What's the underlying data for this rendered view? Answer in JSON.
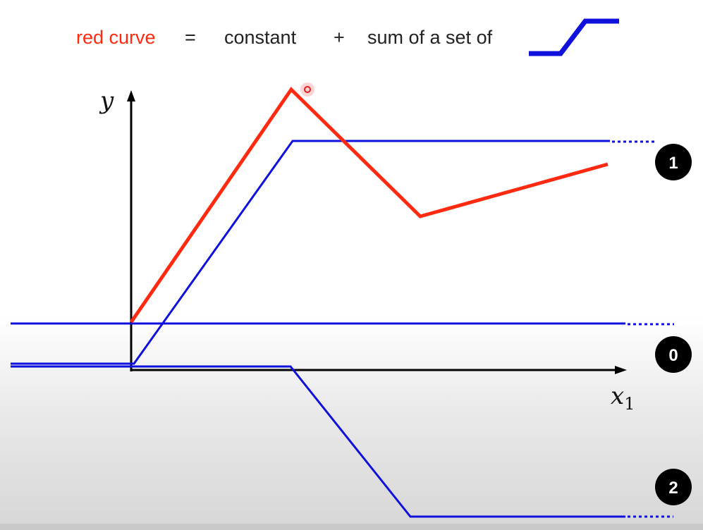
{
  "equation": {
    "term_red": "red curve",
    "equals": "=",
    "term_constant": "constant",
    "plus": "+",
    "term_sum": "sum of a set of",
    "icon": "hard-sigmoid-icon"
  },
  "axes": {
    "y_label": "y",
    "x_label_base": "x",
    "x_label_sub": "1"
  },
  "badges": {
    "one": "1",
    "zero": "0",
    "two": "2"
  },
  "colors": {
    "red": "#ff2a10",
    "blue": "#1010dd",
    "axis": "#000000",
    "badge": "#000000",
    "badge_text": "#ffffff"
  }
}
